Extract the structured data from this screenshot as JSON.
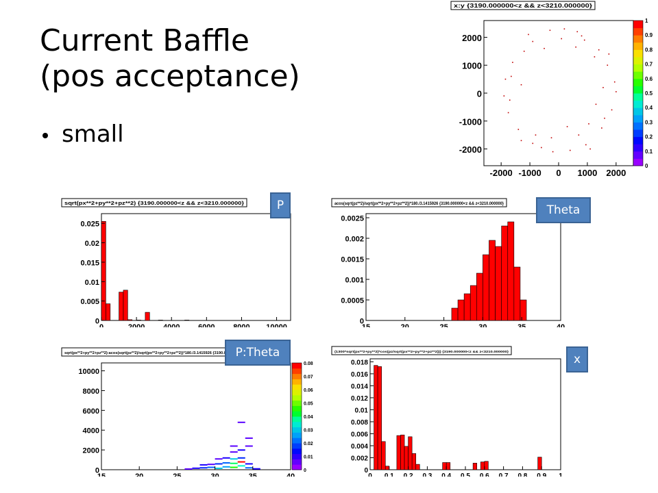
{
  "slide": {
    "title_line1": "Current Baffle",
    "title_line2": "(pos acceptance)",
    "bullet": "small",
    "labels": {
      "p": "P",
      "theta": "Theta",
      "ptheta": "P:Theta",
      "x": "x"
    }
  },
  "colors": {
    "label_bg": "#4f81bd",
    "hist_fill": "#ff0000",
    "frame": "#000000"
  },
  "chart_data": [
    {
      "id": "xy",
      "type": "scatter",
      "title": "x:y {3190.000000<z && z<3210.000000}",
      "xlim": [
        -2600,
        2600
      ],
      "ylim": [
        -2600,
        2600
      ],
      "xticks": [
        -2000,
        -1000,
        0,
        1000,
        2000
      ],
      "xtick_labels": [
        "-2000",
        "-1000",
        "0",
        "1000",
        "2000"
      ],
      "yticks": [
        -2000,
        -1000,
        0,
        1000,
        2000
      ],
      "colorbar_ticks": [
        "0",
        "0.1",
        "0.2",
        "0.3",
        "0.4",
        "0.5",
        "0.6",
        "0.7",
        "0.8",
        "0.9",
        "1"
      ],
      "points": [
        [
          -300,
          2250
        ],
        [
          200,
          2300
        ],
        [
          650,
          2200
        ],
        [
          -900,
          1850
        ],
        [
          900,
          1900
        ],
        [
          -1200,
          1500
        ],
        [
          1400,
          1550
        ],
        [
          -1600,
          1100
        ],
        [
          1700,
          1000
        ],
        [
          -1850,
          500
        ],
        [
          1950,
          400
        ],
        [
          -1900,
          -100
        ],
        [
          2000,
          50
        ],
        [
          -1750,
          -700
        ],
        [
          1850,
          -600
        ],
        [
          -1400,
          -1300
        ],
        [
          1500,
          -1250
        ],
        [
          -900,
          -1800
        ],
        [
          950,
          -1850
        ],
        [
          -200,
          -2100
        ],
        [
          400,
          -2050
        ],
        [
          -600,
          -1950
        ],
        [
          700,
          -1500
        ],
        [
          1100,
          -2000
        ],
        [
          -1300,
          -1700
        ],
        [
          1250,
          1300
        ],
        [
          -500,
          1600
        ],
        [
          600,
          1650
        ],
        [
          1600,
          -900
        ],
        [
          -1650,
          600
        ],
        [
          300,
          -1200
        ],
        [
          -800,
          -1500
        ],
        [
          1050,
          -1100
        ],
        [
          1300,
          -400
        ],
        [
          -1300,
          300
        ],
        [
          100,
          1950
        ],
        [
          -250,
          -1600
        ],
        [
          1550,
          200
        ],
        [
          -1700,
          -250
        ],
        [
          800,
          2050
        ],
        [
          -1050,
          2100
        ],
        [
          1750,
          1400
        ]
      ]
    },
    {
      "id": "p",
      "type": "bar",
      "title": "sqrt(px**2+py**2+pz**2) {3190.000000<z && z<3210.000000}",
      "bin_edges_start": 0,
      "bin_width": 250,
      "values": [
        0.0255,
        0.0043,
        0,
        0,
        0.0073,
        0.0078,
        0.0002,
        0,
        0.0001,
        0,
        0.0021,
        0,
        0,
        0.0001,
        0,
        0,
        0,
        0,
        0,
        0.0001,
        0
      ],
      "xlim": [
        0,
        10800
      ],
      "ylim": [
        0,
        0.0275
      ],
      "xticks": [
        0,
        2000,
        4000,
        6000,
        8000,
        10000
      ],
      "yticks": [
        0,
        0.005,
        0.01,
        0.015,
        0.02,
        0.025
      ],
      "ytick_labels": [
        "0",
        "0.005",
        "0.01",
        "0.015",
        "0.02",
        "0.025"
      ]
    },
    {
      "id": "theta",
      "type": "bar",
      "title": "acos(sqrt(pz**2)/sqrt(px**2+py**2+pz**2))*180./3.1415926 {3190.000000<z && z<3210.000000}",
      "bin_edges_start": 26,
      "bin_width": 0.8,
      "values": [
        0.0003,
        0.0005,
        0.00065,
        0.00085,
        0.00115,
        0.0016,
        0.00195,
        0.0018,
        0.0023,
        0.0024,
        0.0013,
        0.0005
      ],
      "xlim": [
        15,
        40
      ],
      "ylim": [
        0,
        0.0026
      ],
      "xticks": [
        15,
        20,
        25,
        30,
        35,
        40
      ],
      "yticks": [
        0,
        0.0005,
        0.001,
        0.0015,
        0.002,
        0.0025
      ],
      "ytick_labels": [
        "0",
        "0.0005",
        "0.001",
        "0.0015",
        "0.002",
        "0.0025"
      ]
    },
    {
      "id": "ptheta",
      "type": "heatmap",
      "title": "sqrt(px**2+py**2+pz**2):acos(sqrt(pz**2)/sqrt(px**2+py**2+pz**2))*180./3.1415926 {3190.000000<z && z<3210.0",
      "xlim": [
        15,
        40
      ],
      "ylim": [
        0,
        10800
      ],
      "xticks": [
        15,
        20,
        25,
        30,
        35,
        40
      ],
      "yticks": [
        0,
        2000,
        4000,
        6000,
        8000,
        10000
      ],
      "colorbar_ticks": [
        "0",
        "0.01",
        "0.02",
        "0.03",
        "0.04",
        "0.05",
        "0.06",
        "0.07",
        "0.08"
      ],
      "cells": [
        [
          26,
          80,
          0.005
        ],
        [
          27,
          160,
          0.01
        ],
        [
          28,
          200,
          0.015
        ],
        [
          29,
          250,
          0.02
        ],
        [
          30,
          150,
          0.03
        ],
        [
          31,
          300,
          0.025
        ],
        [
          32,
          250,
          0.045
        ],
        [
          33,
          400,
          0.035
        ],
        [
          34,
          200,
          0.02
        ],
        [
          35,
          100,
          0.01
        ],
        [
          28,
          500,
          0.01
        ],
        [
          29,
          550,
          0.005
        ],
        [
          30,
          600,
          0.015
        ],
        [
          31,
          700,
          0.02
        ],
        [
          32,
          650,
          0.04
        ],
        [
          33,
          800,
          0.08
        ],
        [
          34,
          600,
          0.01
        ],
        [
          30,
          1100,
          0.005
        ],
        [
          31,
          1200,
          0.01
        ],
        [
          32,
          1100,
          0.03
        ],
        [
          33,
          1200,
          0.015
        ],
        [
          32,
          1800,
          0.005
        ],
        [
          33,
          2000,
          0.01
        ],
        [
          34,
          2400,
          0.005
        ],
        [
          32,
          2400,
          0.005
        ],
        [
          34,
          3200,
          0.005
        ],
        [
          33,
          4800,
          0.005
        ]
      ]
    },
    {
      "id": "x",
      "type": "bar",
      "title": "(1300*sqrt(px**2+py**2)*cos(pz/sqrt(px**2+py**2+pz**2))) {3190.000000<z && z<3210.000000}",
      "bin_edges_start": 0.02,
      "bin_width": 0.02,
      "values": [
        0.0174,
        0.0172,
        0.0047,
        0.0006,
        0,
        0,
        0.0057,
        0.0058,
        0.0039,
        0.0055,
        0.0027,
        0.0009,
        0,
        0,
        0,
        0,
        0,
        0,
        0.0012,
        0.0012,
        0,
        0,
        0,
        0,
        0,
        0,
        0.0011,
        0,
        0.0013,
        0.0014,
        0,
        0,
        0,
        0,
        0,
        0,
        0,
        0,
        0,
        0,
        0,
        0,
        0,
        0.0021,
        0
      ],
      "xlim": [
        0,
        1
      ],
      "ylim": [
        0,
        0.0185
      ],
      "xticks": [
        0,
        0.1,
        0.2,
        0.3,
        0.4,
        0.5,
        0.6,
        0.7,
        0.8,
        0.9,
        1
      ],
      "xtick_labels": [
        "0",
        "0.1",
        "0.2",
        "0.3",
        "0.4",
        "0.5",
        "0.6",
        "0.7",
        "0.8",
        "0.9",
        "1"
      ],
      "yticks": [
        0,
        0.002,
        0.004,
        0.006,
        0.008,
        0.01,
        0.012,
        0.014,
        0.016,
        0.018
      ],
      "ytick_labels": [
        "0",
        "0.002",
        "0.004",
        "0.006",
        "0.008",
        "0.01",
        "0.012",
        "0.014",
        "0.016",
        "0.018"
      ]
    }
  ]
}
